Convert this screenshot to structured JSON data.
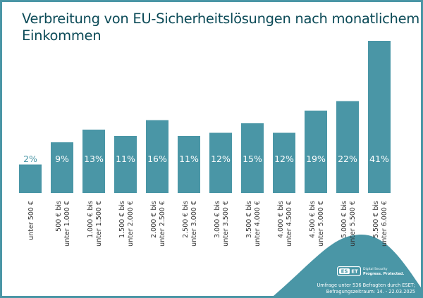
{
  "chart_data": {
    "type": "bar",
    "title": "Verbreitung von EU-Sicherheitslösungen nach monatlichem Einkommen",
    "categories": [
      [
        "unter 500 €"
      ],
      [
        "500 € bis",
        "unter 1.000 €"
      ],
      [
        "1.000 € bis",
        "unter 1.500 €"
      ],
      [
        "1.500 € bis",
        "unter 2.000 €"
      ],
      [
        "2.000 € bis",
        "unter 2.500 €"
      ],
      [
        "2.500 € bis",
        "unter 3.000 €"
      ],
      [
        "3.000 € bis",
        "unter 3.500 €"
      ],
      [
        "3.500 € bis",
        "unter 4.000 €"
      ],
      [
        "4.000 € bis",
        "unter 4.500 €"
      ],
      [
        "4.500 € bis",
        "unter 5.000 €"
      ],
      [
        "5.000 € bis",
        "unter 5.500 €"
      ],
      [
        "5.500 € bis",
        "unter 6.000 €"
      ]
    ],
    "values": [
      2,
      9,
      13,
      11,
      16,
      11,
      12,
      15,
      12,
      19,
      22,
      41
    ],
    "value_suffix": "%",
    "xlabel": "",
    "ylabel": "",
    "grid": false,
    "bar_color": "#4a96a6",
    "title_color": "#0b4a57"
  },
  "footer": {
    "logo_text": "ESET",
    "tagline_1": "Digital Security",
    "tagline_2": "Progress. Protected.",
    "note_1": "Umfrage unter 536 Befragten durch ESET;",
    "note_2": "Befragungszeitraum: 14. - 22.03.2025"
  }
}
